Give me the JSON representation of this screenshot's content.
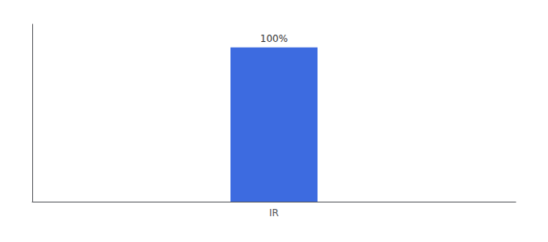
{
  "chart_data": {
    "type": "bar",
    "categories": [
      "IR"
    ],
    "values": [
      100
    ],
    "value_labels": [
      "100%"
    ],
    "data_labels": true,
    "color": "#3d6be0",
    "ylim": [
      0,
      115
    ],
    "grid": false,
    "tick_labels": "x"
  }
}
